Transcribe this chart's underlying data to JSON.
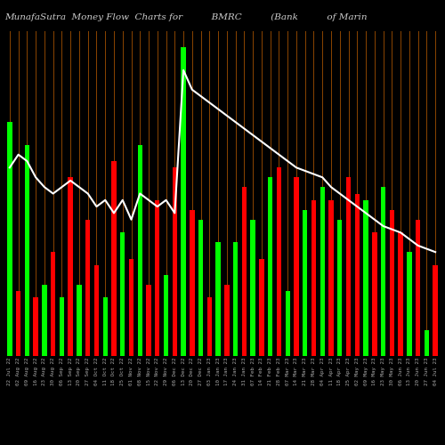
{
  "title": "MunafaSutra  Money Flow  Charts for          BMRC          (Bank          of Marin",
  "background_color": "#000000",
  "bar_width": 0.55,
  "grid_color": "#8B4500",
  "line_color": "#ffffff",
  "categories": [
    "22 Jul 22",
    "02 Aug 22",
    "09 Aug 22",
    "16 Aug 22",
    "23 Aug 22",
    "30 Aug 22",
    "06 Sep 22",
    "13 Sep 22",
    "20 Sep 22",
    "27 Sep 22",
    "04 Oct 22",
    "11 Oct 22",
    "18 Oct 22",
    "25 Oct 22",
    "01 Nov 22",
    "08 Nov 22",
    "15 Nov 22",
    "22 Nov 22",
    "29 Nov 22",
    "06 Dec 22",
    "13 Dec 22",
    "20 Dec 22",
    "27 Dec 22",
    "03 Jan 23",
    "10 Jan 23",
    "17 Jan 23",
    "24 Jan 23",
    "31 Jan 23",
    "07 Feb 23",
    "14 Feb 23",
    "21 Feb 23",
    "28 Feb 23",
    "07 Mar 23",
    "14 Mar 23",
    "21 Mar 23",
    "28 Mar 23",
    "04 Apr 23",
    "11 Apr 23",
    "18 Apr 23",
    "25 Apr 23",
    "02 May 23",
    "09 May 23",
    "16 May 23",
    "23 May 23",
    "30 May 23",
    "06 Jun 23",
    "13 Jun 23",
    "20 Jun 23",
    "27 Jun 23",
    "04 Jul 23"
  ],
  "bar_heights": [
    72,
    20,
    65,
    18,
    22,
    32,
    18,
    55,
    22,
    42,
    28,
    18,
    60,
    38,
    30,
    65,
    22,
    48,
    25,
    58,
    95,
    45,
    42,
    18,
    35,
    22,
    35,
    52,
    42,
    30,
    55,
    58,
    20,
    55,
    45,
    48,
    52,
    48,
    42,
    55,
    50,
    48,
    38,
    52,
    45,
    38,
    32,
    42,
    8,
    28
  ],
  "bar_colors": [
    "#00ff00",
    "#ff0000",
    "#00ff00",
    "#ff0000",
    "#00ff00",
    "#ff0000",
    "#00ff00",
    "#ff0000",
    "#00ff00",
    "#ff0000",
    "#ff0000",
    "#00ff00",
    "#ff0000",
    "#00ff00",
    "#ff0000",
    "#00ff00",
    "#ff0000",
    "#ff0000",
    "#00ff00",
    "#ff0000",
    "#00ff00",
    "#ff0000",
    "#00ff00",
    "#ff0000",
    "#00ff00",
    "#ff0000",
    "#00ff00",
    "#ff0000",
    "#00ff00",
    "#ff0000",
    "#00ff00",
    "#ff0000",
    "#00ff00",
    "#ff0000",
    "#00ff00",
    "#ff0000",
    "#00ff00",
    "#ff0000",
    "#00ff00",
    "#ff0000",
    "#ff0000",
    "#00ff00",
    "#ff0000",
    "#00ff00",
    "#ff0000",
    "#ff0000",
    "#00ff00",
    "#ff0000",
    "#00ff00",
    "#ff0000"
  ],
  "line_values": [
    58,
    62,
    60,
    55,
    52,
    50,
    52,
    54,
    52,
    50,
    46,
    48,
    44,
    48,
    42,
    50,
    48,
    46,
    48,
    44,
    88,
    82,
    80,
    78,
    76,
    74,
    72,
    70,
    68,
    66,
    64,
    62,
    60,
    58,
    57,
    56,
    55,
    52,
    50,
    48,
    46,
    44,
    42,
    40,
    39,
    38,
    36,
    34,
    33,
    32
  ],
  "ylim": [
    0,
    100
  ],
  "title_fontsize": 7.5,
  "title_color": "#cccccc"
}
